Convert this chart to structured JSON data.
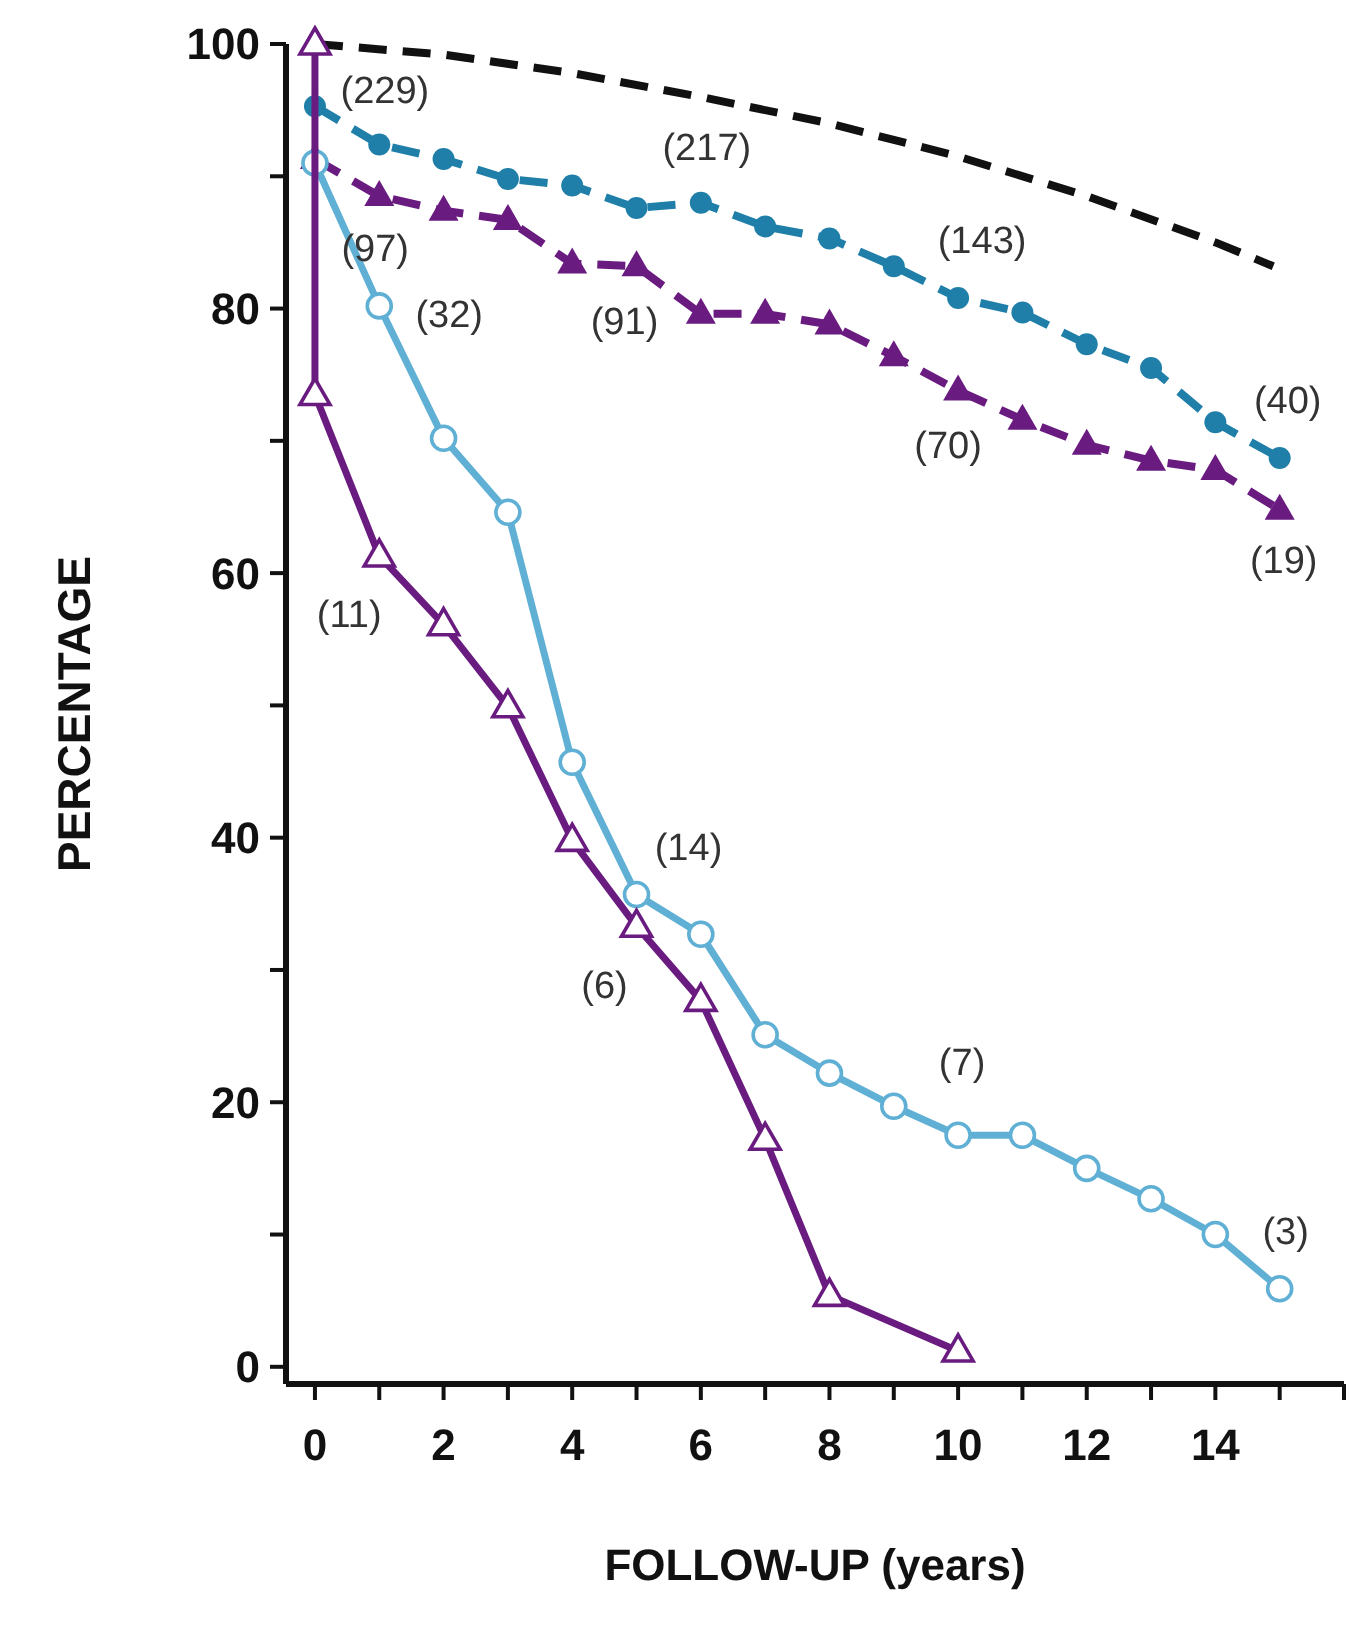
{
  "chart_data": {
    "type": "line",
    "xlabel": "FOLLOW-UP (years)",
    "ylabel": "PERCENTAGE",
    "xlim": [
      -0.45,
      16
    ],
    "ylim": [
      -1.3,
      100
    ],
    "xticks": [
      0,
      {
        "value": 1,
        "label": null
      },
      2,
      {
        "value": 3,
        "label": null
      },
      4,
      {
        "value": 5,
        "label": null
      },
      6,
      {
        "value": 7,
        "label": null
      },
      8,
      {
        "value": 9,
        "label": null
      },
      10,
      {
        "value": 11,
        "label": null
      },
      12,
      {
        "value": 13,
        "label": null
      },
      14,
      {
        "value": 15,
        "label": null
      },
      {
        "value": 16,
        "label": null
      }
    ],
    "yticks": [
      0,
      {
        "value": 10,
        "label": null
      },
      20,
      {
        "value": 30,
        "label": null
      },
      40,
      {
        "value": 50,
        "label": null
      },
      60,
      {
        "value": 70,
        "label": null
      },
      80,
      {
        "value": 90,
        "label": null
      },
      100
    ],
    "grid": false,
    "series": [
      {
        "color": "#111111",
        "line_style": "dashed",
        "marker": "none",
        "x": [
          0,
          2,
          4,
          6,
          8,
          10,
          12,
          14,
          14.9
        ],
        "values": [
          100,
          99.2,
          97.8,
          96,
          94,
          91.5,
          88.5,
          85,
          83.2
        ]
      },
      {
        "color": "#1f7fa8",
        "line_style": "dashed",
        "marker": "circle",
        "x": [
          0,
          1,
          2,
          3,
          4,
          5,
          6,
          7,
          8,
          9,
          10,
          11,
          12,
          13,
          14,
          15
        ],
        "values": [
          95.3,
          92.4,
          91.3,
          89.8,
          89.3,
          87.6,
          88,
          86.2,
          85.3,
          83.2,
          80.8,
          79.7,
          77.3,
          75.5,
          71.4,
          68.7
        ]
      },
      {
        "color": "#6a1b80",
        "line_style": "dashed",
        "marker": "triangle",
        "x": [
          0,
          1,
          2,
          3,
          4,
          5,
          6,
          7,
          8,
          9,
          10,
          11,
          12,
          13,
          14,
          15
        ],
        "values": [
          91.3,
          88.5,
          87.4,
          86.7,
          83.4,
          83.2,
          79.6,
          79.6,
          78.8,
          76.4,
          73.8,
          71.6,
          69.7,
          68.5,
          67.8,
          64.8
        ]
      },
      {
        "color": "#5fb0d4",
        "line_style": "solid",
        "marker": "circle",
        "x": [
          0,
          1,
          2,
          3,
          4,
          5,
          6,
          7,
          8,
          9,
          10,
          11,
          12,
          13,
          14,
          15
        ],
        "values": [
          91,
          80.2,
          70.2,
          64.6,
          45.7,
          35.7,
          32.7,
          25.1,
          22.2,
          19.7,
          17.5,
          17.5,
          15,
          12.7,
          10,
          5.9
        ]
      },
      {
        "color": "#6a1b80",
        "line_style": "solid",
        "marker": "triangle",
        "x": [
          0,
          0,
          1,
          2,
          3,
          4,
          5,
          6,
          7,
          8,
          10
        ],
        "values": [
          100,
          73.5,
          61.3,
          56.1,
          49.9,
          39.8,
          33.3,
          27.7,
          17.2,
          5.4,
          1.2
        ]
      }
    ],
    "annotations": [
      {
        "text": "(229)",
        "x": 0,
        "y": 95.3
      },
      {
        "text": "(217)",
        "x": 6,
        "y": 88
      },
      {
        "text": "(143)",
        "x": 10,
        "y": 80.8
      },
      {
        "text": "(40)",
        "x": 15,
        "y": 68.7
      },
      {
        "text": "(97)",
        "x": 1,
        "y": 88.5
      },
      {
        "text": "(91)",
        "x": 5,
        "y": 83.2
      },
      {
        "text": "(70)",
        "x": 10,
        "y": 73.8
      },
      {
        "text": "(19)",
        "x": 15,
        "y": 64.8
      },
      {
        "text": "(32)",
        "x": 1,
        "y": 80.2
      },
      {
        "text": "(14)",
        "x": 5,
        "y": 35.7
      },
      {
        "text": "(7)",
        "x": 10,
        "y": 17.5
      },
      {
        "text": "(3)",
        "x": 15,
        "y": 5.9
      },
      {
        "text": "(11)",
        "x": 1,
        "y": 61.3
      },
      {
        "text": "(6)",
        "x": 5,
        "y": 33.3
      }
    ]
  }
}
